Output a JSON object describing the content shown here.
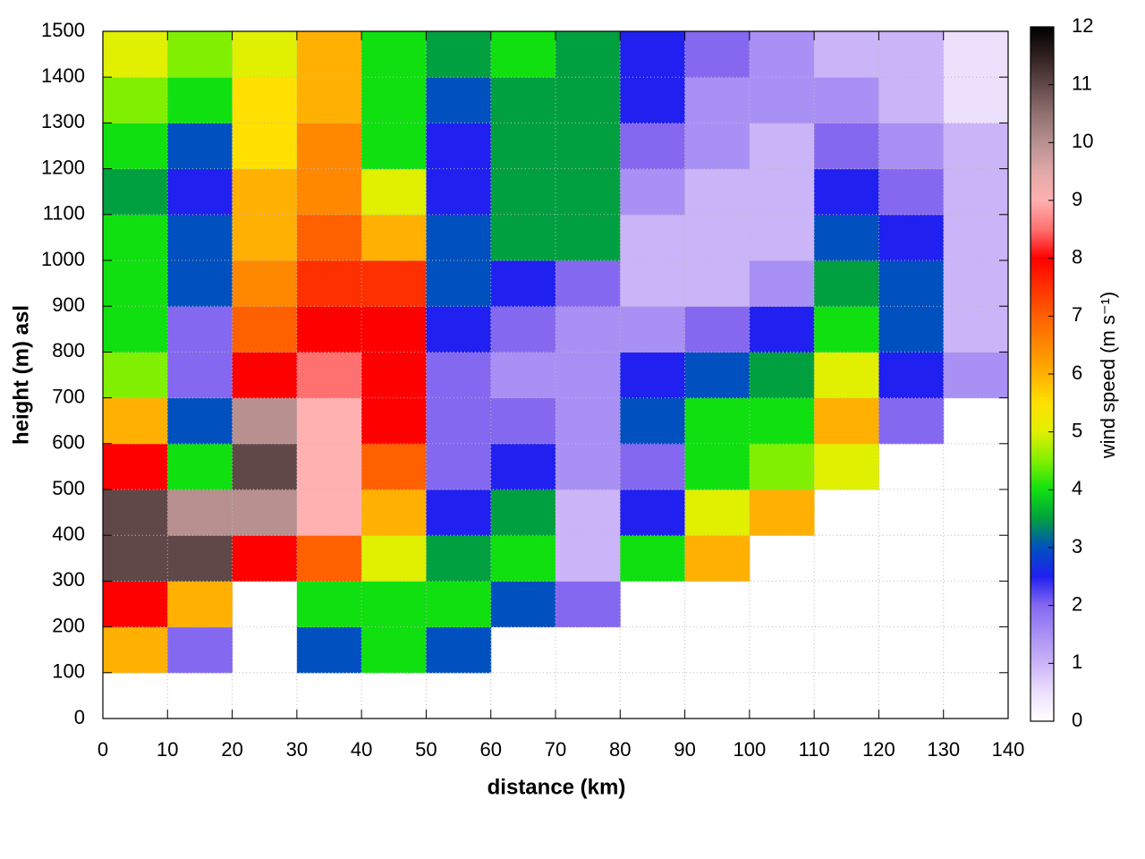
{
  "chart_data": {
    "type": "heatmap",
    "xlabel": "distance (km)",
    "ylabel": "height (m) asl",
    "zlabel": "wind speed (m s⁻¹)",
    "x_edges": [
      0,
      10,
      20,
      30,
      40,
      50,
      60,
      70,
      80,
      90,
      100,
      110,
      120,
      130,
      140
    ],
    "y_edges": [
      0,
      100,
      200,
      300,
      400,
      500,
      600,
      700,
      800,
      900,
      1000,
      1100,
      1200,
      1300,
      1400,
      1500
    ],
    "z": [
      [
        null,
        null,
        null,
        null,
        null,
        null,
        null,
        null,
        null,
        null,
        null,
        null,
        null,
        null
      ],
      [
        6,
        2,
        null,
        3,
        4,
        3,
        null,
        null,
        null,
        null,
        null,
        null,
        null,
        null
      ],
      [
        8,
        6,
        null,
        4,
        4,
        4,
        3,
        2,
        null,
        null,
        null,
        null,
        null,
        null
      ],
      [
        11,
        11,
        8,
        7,
        5,
        3.5,
        4,
        1,
        4,
        6,
        null,
        null,
        null,
        null
      ],
      [
        11,
        10,
        10,
        9,
        6,
        2.5,
        3.5,
        1,
        2.5,
        5,
        6,
        null,
        null,
        null
      ],
      [
        8,
        4,
        11,
        9,
        7,
        2,
        2.5,
        1.5,
        2,
        4,
        4.5,
        5,
        null,
        null
      ],
      [
        6,
        3,
        10,
        9,
        8,
        2,
        2,
        1.5,
        3,
        4,
        4,
        6,
        2,
        null
      ],
      [
        4.5,
        2,
        8,
        8.5,
        8,
        2,
        1.5,
        1.5,
        2.5,
        3,
        3.5,
        5,
        2.5,
        1.5
      ],
      [
        4,
        2,
        7,
        8,
        8,
        2.5,
        2,
        1.5,
        1.5,
        2,
        2.5,
        4,
        3,
        1
      ],
      [
        4,
        3,
        6.5,
        7.5,
        7.5,
        3,
        2.5,
        2,
        1,
        1,
        1.5,
        3.5,
        3,
        1
      ],
      [
        4,
        3,
        6,
        7,
        6,
        3,
        3.5,
        3.5,
        1,
        1,
        1,
        3,
        2.5,
        1
      ],
      [
        3.5,
        2.5,
        6,
        6.5,
        5,
        2.5,
        3.5,
        3.5,
        1.5,
        1,
        1,
        2.5,
        2,
        1
      ],
      [
        4,
        3,
        5.5,
        6.5,
        4,
        2.5,
        3.5,
        3.5,
        2,
        1.5,
        1,
        2,
        1.5,
        1
      ],
      [
        4.5,
        4,
        5.5,
        6,
        4,
        3,
        3.5,
        3.5,
        2.5,
        1.5,
        1.5,
        1.5,
        1,
        0.5
      ],
      [
        5,
        4.5,
        5,
        6,
        4,
        3.5,
        4,
        3.5,
        2.5,
        2,
        1.5,
        1,
        1,
        0.5
      ]
    ],
    "xlim": [
      0,
      140
    ],
    "xticks": [
      0,
      10,
      20,
      30,
      40,
      50,
      60,
      70,
      80,
      90,
      100,
      110,
      120,
      130,
      140
    ],
    "ylim": [
      0,
      1500
    ],
    "yticks": [
      0,
      100,
      200,
      300,
      400,
      500,
      600,
      700,
      800,
      900,
      1000,
      1100,
      1200,
      1300,
      1400,
      1500
    ],
    "zlim": [
      0,
      12
    ],
    "zticks": [
      0,
      1,
      2,
      3,
      4,
      5,
      6,
      7,
      8,
      9,
      10,
      11,
      12
    ],
    "grid": true,
    "colors": [
      "#ffffff",
      "#ece0fc",
      "#cbb4f8",
      "#a890f4",
      "#8468f0",
      "#2020f0",
      "#0050c0",
      "#00a040",
      "#10e010",
      "#80f000",
      "#e0f000",
      "#ffe000",
      "#ffb000",
      "#ff8800",
      "#ff6000",
      "#ff3000",
      "#ff0000",
      "#ff7070",
      "#ffb0b0",
      "#e0a8a8",
      "#b89090",
      "#907070",
      "#604848",
      "#302020",
      "#000000"
    ]
  }
}
